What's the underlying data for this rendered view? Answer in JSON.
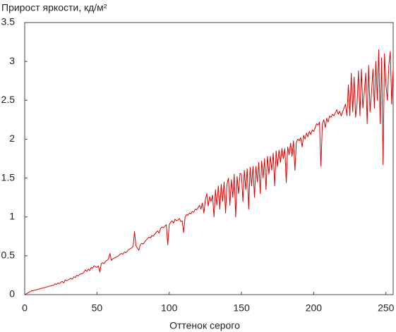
{
  "chart_data": {
    "type": "line",
    "title": "Прирост яркости, кд/м²",
    "x_label": "Оттенок серого",
    "xlim": [
      0,
      255
    ],
    "xticks": [
      0,
      50,
      100,
      150,
      200,
      250
    ],
    "ylim": [
      0,
      3.5
    ],
    "yticks": [
      0,
      0.5,
      1,
      1.5,
      2,
      2.5,
      3,
      3.5
    ],
    "grid": false,
    "x": [
      0,
      1,
      2,
      3,
      4,
      5,
      6,
      7,
      8,
      9,
      10,
      11,
      12,
      13,
      14,
      15,
      16,
      17,
      18,
      19,
      20,
      21,
      22,
      23,
      24,
      25,
      26,
      27,
      28,
      29,
      30,
      31,
      32,
      33,
      34,
      35,
      36,
      37,
      38,
      39,
      40,
      41,
      42,
      43,
      44,
      45,
      46,
      47,
      48,
      49,
      50,
      51,
      52,
      53,
      54,
      55,
      56,
      57,
      58,
      59,
      60,
      61,
      62,
      63,
      64,
      65,
      66,
      67,
      68,
      69,
      70,
      71,
      72,
      73,
      74,
      75,
      76,
      77,
      78,
      79,
      80,
      81,
      82,
      83,
      84,
      85,
      86,
      87,
      88,
      89,
      90,
      91,
      92,
      93,
      94,
      95,
      96,
      97,
      98,
      99,
      100,
      101,
      102,
      103,
      104,
      105,
      106,
      107,
      108,
      109,
      110,
      111,
      112,
      113,
      114,
      115,
      116,
      117,
      118,
      119,
      120,
      121,
      122,
      123,
      124,
      125,
      126,
      127,
      128,
      129,
      130,
      131,
      132,
      133,
      134,
      135,
      136,
      137,
      138,
      139,
      140,
      141,
      142,
      143,
      144,
      145,
      146,
      147,
      148,
      149,
      150,
      151,
      152,
      153,
      154,
      155,
      156,
      157,
      158,
      159,
      160,
      161,
      162,
      163,
      164,
      165,
      166,
      167,
      168,
      169,
      170,
      171,
      172,
      173,
      174,
      175,
      176,
      177,
      178,
      179,
      180,
      181,
      182,
      183,
      184,
      185,
      186,
      187,
      188,
      189,
      190,
      191,
      192,
      193,
      194,
      195,
      196,
      197,
      198,
      199,
      200,
      201,
      202,
      203,
      204,
      205,
      206,
      207,
      208,
      209,
      210,
      211,
      212,
      213,
      214,
      215,
      216,
      217,
      218,
      219,
      220,
      221,
      222,
      223,
      224,
      225,
      226,
      227,
      228,
      229,
      230,
      231,
      232,
      233,
      234,
      235,
      236,
      237,
      238,
      239,
      240,
      241,
      242,
      243,
      244,
      245,
      246,
      247,
      248,
      249,
      250,
      251,
      252,
      253,
      254,
      255
    ],
    "series": [
      {
        "color": "#e00000",
        "values": [
          0,
          0.01,
          0.02,
          0.03,
          0.04,
          0.05,
          0.05,
          0.06,
          0.06,
          0.07,
          0.07,
          0.08,
          0.08,
          0.09,
          0.09,
          0.1,
          0.1,
          0.11,
          0.11,
          0.12,
          0.12,
          0.14,
          0.13,
          0.15,
          0.14,
          0.16,
          0.17,
          0.15,
          0.19,
          0.18,
          0.19,
          0.2,
          0.21,
          0.2,
          0.23,
          0.22,
          0.25,
          0.24,
          0.26,
          0.27,
          0.27,
          0.29,
          0.32,
          0.3,
          0.33,
          0.31,
          0.35,
          0.34,
          0.37,
          0.36,
          0.35,
          0.37,
          0.29,
          0.4,
          0.41,
          0.4,
          0.43,
          0.44,
          0.46,
          0.53,
          0.44,
          0.46,
          0.47,
          0.48,
          0.49,
          0.5,
          0.52,
          0.53,
          0.52,
          0.55,
          0.54,
          0.56,
          0.58,
          0.59,
          0.6,
          0.62,
          0.81,
          0.63,
          0.6,
          0.57,
          0.64,
          0.66,
          0.65,
          0.68,
          0.7,
          0.72,
          0.74,
          0.73,
          0.76,
          0.75,
          0.78,
          0.8,
          0.82,
          0.79,
          0.85,
          0.87,
          0.86,
          0.88,
          0.9,
          0.64,
          0.9,
          0.93,
          0.95,
          0.92,
          0.97,
          0.95,
          0.96,
          0.98,
          0.94,
          0.95,
          0.8,
          1.0,
          1.03,
          1.02,
          1.05,
          1.04,
          1.07,
          1.06,
          1.1,
          1.09,
          1.12,
          1.15,
          1.1,
          1.18,
          1.05,
          1.22,
          1.3,
          1.14,
          1.26,
          1.2,
          1.28,
          1.0,
          1.35,
          1.15,
          1.4,
          1.1,
          1.42,
          1.2,
          1.45,
          1.05,
          1.42,
          1.5,
          1.15,
          1.48,
          1.25,
          1.55,
          1.0,
          1.52,
          1.3,
          1.56,
          1.55,
          1.2,
          1.6,
          1.35,
          1.62,
          1.1,
          1.64,
          1.4,
          1.65,
          1.25,
          1.65,
          1.45,
          1.7,
          1.3,
          1.72,
          1.5,
          1.75,
          1.35,
          1.78,
          1.55,
          1.78,
          1.6,
          1.82,
          1.4,
          1.85,
          1.65,
          1.86,
          1.7,
          1.88,
          1.75,
          1.88,
          1.44,
          1.9,
          1.8,
          1.95,
          1.78,
          1.98,
          1.6,
          1.96,
          2.0,
          1.98,
          2.02,
          1.9,
          2.05,
          2.0,
          2.08,
          2.03,
          2.1,
          2.06,
          2.12,
          2.1,
          2.15,
          2.2,
          2.18,
          2.22,
          1.65,
          2.2,
          2.25,
          2.15,
          2.27,
          2.22,
          2.3,
          2.28,
          2.32,
          2.3,
          2.34,
          2.38,
          2.32,
          2.36,
          2.3,
          2.35,
          2.4,
          2.45,
          2.3,
          2.7,
          2.3,
          2.85,
          2.35,
          2.8,
          2.28,
          2.45,
          2.88,
          2.3,
          2.9,
          2.4,
          2.6,
          2.85,
          2.2,
          2.95,
          2.35,
          2.6,
          2.9,
          2.4,
          3.0,
          2.5,
          3.15,
          2.2,
          3.05,
          1.67,
          3.1,
          2.7,
          2.5,
          2.95,
          3.13,
          2.45,
          2.9
        ]
      }
    ]
  }
}
